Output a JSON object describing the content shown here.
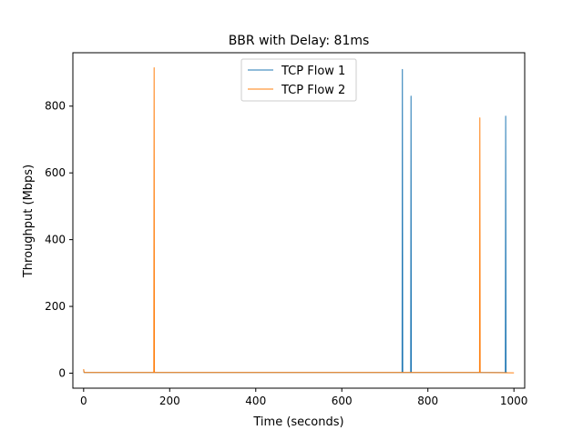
{
  "chart_data": {
    "type": "line",
    "title": "BBR with Delay: 81ms",
    "xlabel": "Time (seconds)",
    "ylabel": "Throughput (Mbps)",
    "xlim": [
      -25,
      1025
    ],
    "ylim": [
      -45,
      960
    ],
    "xticks": [
      0,
      200,
      400,
      600,
      800,
      1000
    ],
    "yticks": [
      0,
      200,
      400,
      600,
      800
    ],
    "xtick_labels": [
      "0",
      "200",
      "400",
      "600",
      "800",
      "1000"
    ],
    "ytick_labels": [
      "0",
      "200",
      "400",
      "600",
      "800"
    ],
    "grid": false,
    "legend_position": "top-center",
    "series": [
      {
        "name": "TCP Flow 1",
        "color": "#1f77b4",
        "x": [
          0,
          1,
          2,
          740,
          740.8,
          741.6,
          742.4,
          760,
          760.8,
          761.6,
          762.4,
          980,
          980.8,
          981.6,
          982.4,
          984
        ],
        "y": [
          10,
          2,
          2,
          2,
          910,
          2,
          2,
          2,
          830,
          2,
          2,
          2,
          770,
          2,
          2,
          2
        ]
      },
      {
        "name": "TCP Flow 2",
        "color": "#ff7f0e",
        "x": [
          0,
          1,
          2,
          163,
          163.8,
          164.6,
          165.4,
          920,
          920.8,
          921.6,
          922.4,
          1000
        ],
        "y": [
          12,
          3,
          2,
          2,
          915,
          2,
          2,
          2,
          765,
          2,
          2,
          1
        ]
      }
    ]
  }
}
